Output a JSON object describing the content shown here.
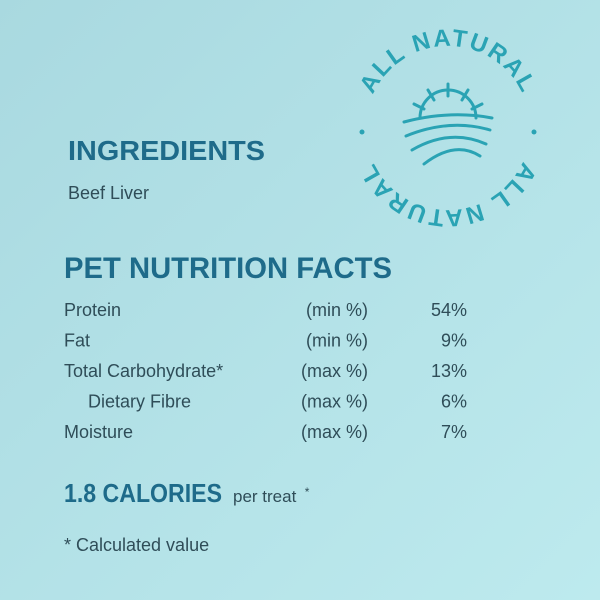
{
  "badge": {
    "top": "ALL NATURAL",
    "bottom": "ALL NATURAL"
  },
  "ingredients": {
    "title": "INGREDIENTS",
    "text": "Beef Liver"
  },
  "nutrition": {
    "title": "PET NUTRITION FACTS",
    "rows": [
      [
        "Protein",
        "(min %)",
        "54%"
      ],
      [
        "Fat",
        "(min %)",
        "9%"
      ],
      [
        "Total Carbohydrate*",
        "(max %)",
        "13%"
      ],
      [
        "Dietary Fibre",
        "(max %)",
        "6%"
      ],
      [
        "Moisture",
        "(max %)",
        "7%"
      ]
    ]
  },
  "calories": {
    "amount": "1.8 CALORIES",
    "unit": "per treat",
    "mark": "*"
  },
  "footnote": "* Calculated value"
}
